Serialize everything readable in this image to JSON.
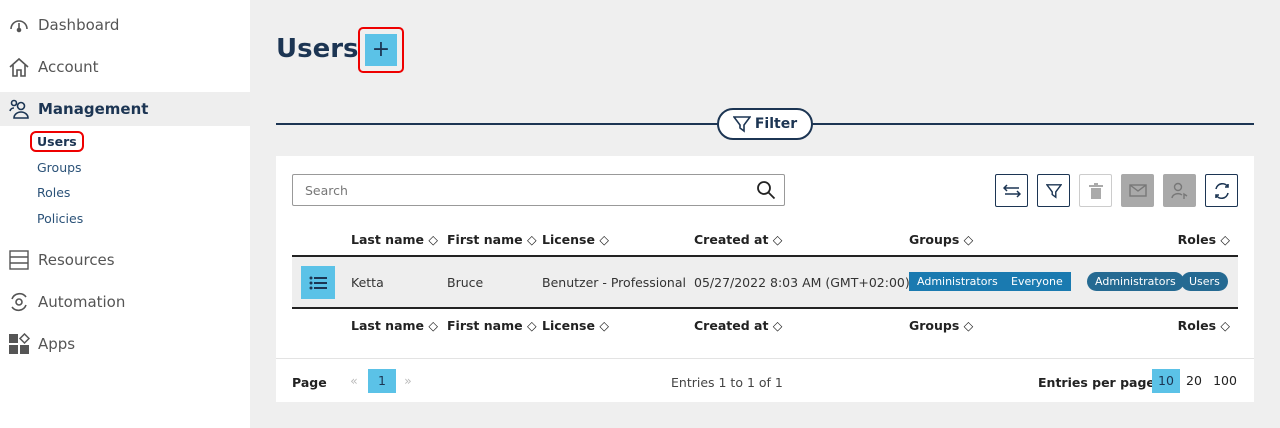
{
  "sidebar": {
    "items": [
      {
        "label": "Dashboard",
        "icon": "gauge-icon"
      },
      {
        "label": "Account",
        "icon": "home-icon"
      },
      {
        "label": "Management",
        "icon": "users-icon",
        "active": true
      },
      {
        "label": "Resources",
        "icon": "server-icon"
      },
      {
        "label": "Automation",
        "icon": "gear-cycle-icon"
      },
      {
        "label": "Apps",
        "icon": "apps-icon"
      }
    ],
    "sub_items": [
      {
        "label": "Users",
        "active": true
      },
      {
        "label": "Groups"
      },
      {
        "label": "Roles"
      },
      {
        "label": "Policies"
      }
    ]
  },
  "page": {
    "title": "Users",
    "add_label": "+",
    "filter_label": "Filter"
  },
  "search": {
    "placeholder": "Search"
  },
  "toolbar": [
    "swap-icon",
    "filter-icon",
    "trash-icon",
    "mail-icon",
    "user-export-icon",
    "refresh-icon"
  ],
  "table": {
    "columns": [
      "Last name",
      "First name",
      "License",
      "Created at",
      "Groups",
      "Roles"
    ],
    "rows": [
      {
        "last_name": "Ketta",
        "first_name": "Bruce",
        "license": "Benutzer - Professional",
        "created_at": "05/27/2022 8:03 AM (GMT+02:00)",
        "groups": [
          "Administrators",
          "Everyone"
        ],
        "roles": [
          "Administrators",
          "Users"
        ]
      }
    ]
  },
  "footer": {
    "page_label": "Page",
    "current_page": "1",
    "entries": "Entries 1 to 1 of 1",
    "per_page_label": "Entries per page",
    "per_page_options": [
      "10",
      "20",
      "100"
    ],
    "per_page_selected": "10"
  },
  "colors": {
    "accent": "#5bc2e7",
    "navy": "#1c3553",
    "group_tag": "#1a7ab0",
    "role_tag": "#256a92"
  }
}
